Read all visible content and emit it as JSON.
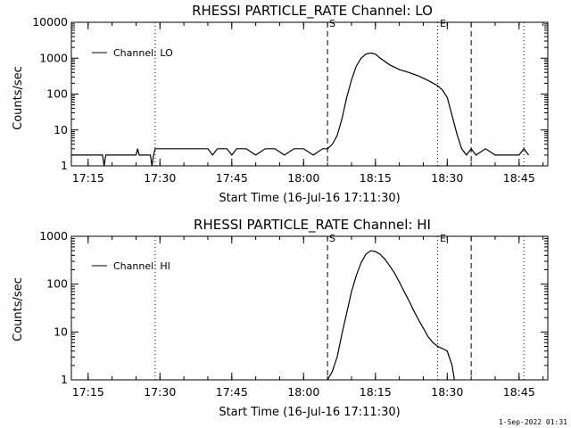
{
  "panels": [
    {
      "title": "RHESSI PARTICLE_RATE Channel: LO",
      "ylabel": "Counts/sec",
      "xlabel": "Start Time (16-Jul-16 17:11:30)",
      "legend": "Channel: LO",
      "markers": [
        {
          "label": "S",
          "time": "18:05"
        },
        {
          "label": "E",
          "time": "18:28"
        }
      ],
      "y_ticks": [
        "1",
        "10",
        "100",
        "1000",
        "10000"
      ],
      "x_ticks": [
        "17:15",
        "17:30",
        "17:45",
        "18:00",
        "18:15",
        "18:30",
        "18:45"
      ]
    },
    {
      "title": "RHESSI PARTICLE_RATE Channel: HI",
      "ylabel": "Counts/sec",
      "xlabel": "Start Time (16-Jul-16 17:11:30)",
      "legend": "Channel: HI",
      "markers": [
        {
          "label": "S",
          "time": "18:05"
        },
        {
          "label": "E",
          "time": "18:28"
        }
      ],
      "y_ticks": [
        "1",
        "10",
        "100",
        "1000"
      ],
      "x_ticks": [
        "17:15",
        "17:30",
        "17:45",
        "18:00",
        "18:15",
        "18:30",
        "18:45"
      ]
    }
  ],
  "footer_stamp": "1-Sep-2022 01:31",
  "chart_data": [
    {
      "type": "line",
      "title": "RHESSI PARTICLE_RATE Channel: LO",
      "xlabel": "Start Time (16-Jul-16 17:11:30)",
      "ylabel": "Counts/sec",
      "yscale": "log",
      "xlim": [
        "17:11:30",
        "18:51:00"
      ],
      "ylim": [
        1,
        10000
      ],
      "vlines": {
        "dotted": [
          "17:29",
          "18:28",
          "18:46"
        ],
        "dashed": [
          "18:05",
          "18:35"
        ]
      },
      "series": [
        {
          "name": "Channel: LO",
          "x": [
            "17:11:30",
            "17:18",
            "17:18:20",
            "17:18:40",
            "17:25",
            "17:25:20",
            "17:25:40",
            "17:28",
            "17:28:20",
            "17:28:40",
            "17:29",
            "17:40",
            "17:41",
            "17:42",
            "17:44",
            "17:45",
            "17:46",
            "17:48",
            "17:50",
            "17:52",
            "17:54",
            "17:56",
            "17:58",
            "18:00",
            "18:02",
            "18:04",
            "18:05",
            "18:06",
            "18:07",
            "18:08",
            "18:09",
            "18:10",
            "18:11",
            "18:12",
            "18:13",
            "18:14",
            "18:15",
            "18:16",
            "18:18",
            "18:20",
            "18:22",
            "18:24",
            "18:26",
            "18:28",
            "18:29",
            "18:30",
            "18:31",
            "18:32",
            "18:33",
            "18:34",
            "18:35",
            "18:36",
            "18:38",
            "18:40",
            "18:42",
            "18:45",
            "18:46",
            "18:47"
          ],
          "y": [
            2,
            2,
            1,
            2,
            2,
            3,
            2,
            2,
            1,
            2,
            3,
            3,
            2,
            3,
            3,
            2,
            3,
            3,
            2,
            3,
            3,
            2,
            3,
            3,
            2,
            3,
            3,
            4,
            7,
            20,
            80,
            250,
            600,
            1000,
            1300,
            1400,
            1300,
            1000,
            650,
            480,
            400,
            320,
            240,
            170,
            130,
            80,
            25,
            8,
            3,
            2,
            3,
            2,
            3,
            2,
            2,
            2,
            3,
            2
          ]
        }
      ]
    },
    {
      "type": "line",
      "title": "RHESSI PARTICLE_RATE Channel: HI",
      "xlabel": "Start Time (16-Jul-16 17:11:30)",
      "ylabel": "Counts/sec",
      "yscale": "log",
      "xlim": [
        "17:11:30",
        "18:51:00"
      ],
      "ylim": [
        1,
        1000
      ],
      "vlines": {
        "dotted": [
          "17:29",
          "18:28",
          "18:46"
        ],
        "dashed": [
          "18:05",
          "18:35"
        ]
      },
      "series": [
        {
          "name": "Channel: HI",
          "x": [
            "18:05",
            "18:06",
            "18:07",
            "18:08",
            "18:09",
            "18:10",
            "18:11",
            "18:12",
            "18:13",
            "18:14",
            "18:15",
            "18:16",
            "18:17",
            "18:18",
            "18:19",
            "18:20",
            "18:21",
            "18:22",
            "18:23",
            "18:24",
            "18:25",
            "18:26",
            "18:27",
            "18:28",
            "18:29",
            "18:30",
            "18:31",
            "18:31:30"
          ],
          "y": [
            1,
            1.5,
            3,
            9,
            25,
            70,
            150,
            280,
            420,
            500,
            480,
            420,
            330,
            240,
            170,
            110,
            70,
            45,
            28,
            18,
            12,
            8,
            6,
            5,
            4.5,
            4,
            2,
            1
          ]
        }
      ]
    }
  ]
}
